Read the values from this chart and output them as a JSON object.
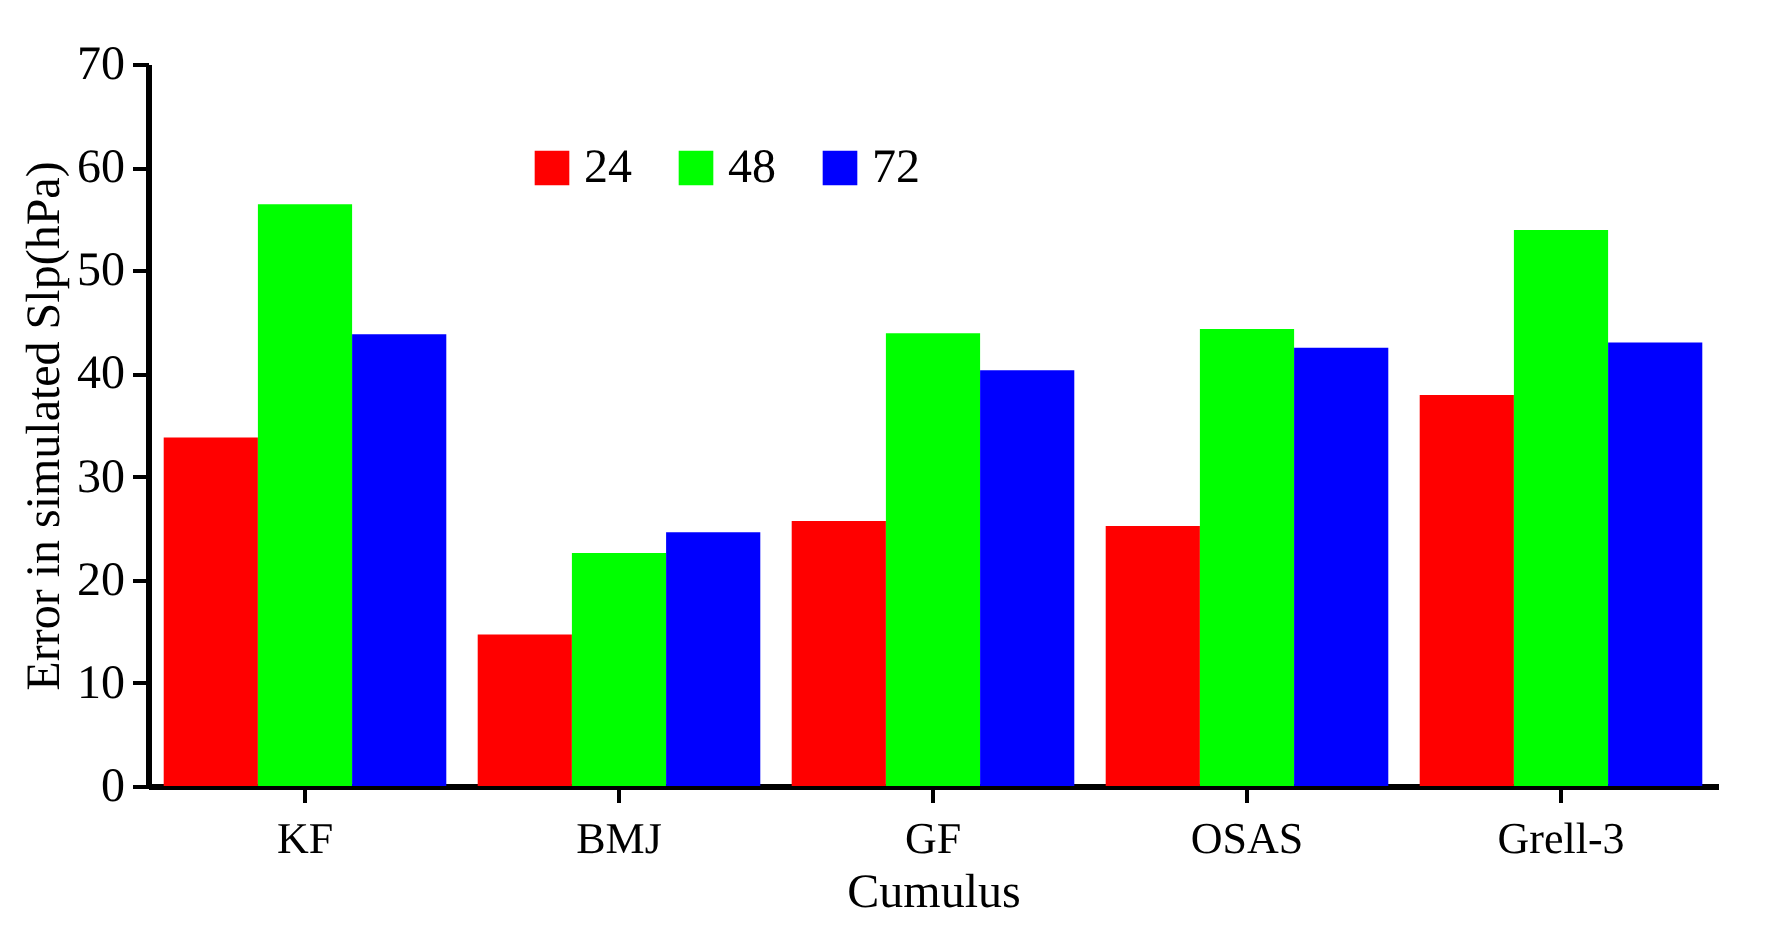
{
  "chart_data": {
    "type": "bar",
    "xlabel": "Cumulus",
    "ylabel": "Error in simulated Slp(hPa)",
    "categories": [
      "KF",
      "BMJ",
      "GF",
      "OSAS",
      "Grell-3"
    ],
    "series": [
      {
        "name": "24",
        "color": "#ff0000",
        "values": [
          33.8,
          14.7,
          25.7,
          25.2,
          37.9
        ]
      },
      {
        "name": "48",
        "color": "#00ff00",
        "values": [
          56.4,
          22.6,
          43.9,
          44.3,
          53.9
        ]
      },
      {
        "name": "72",
        "color": "#0000ff",
        "values": [
          43.8,
          24.6,
          40.3,
          42.5,
          43.0
        ]
      }
    ],
    "ylim": [
      0,
      70
    ],
    "yticks": [
      0,
      10,
      20,
      30,
      40,
      50,
      60,
      70
    ],
    "grid": false,
    "legend": "top"
  }
}
